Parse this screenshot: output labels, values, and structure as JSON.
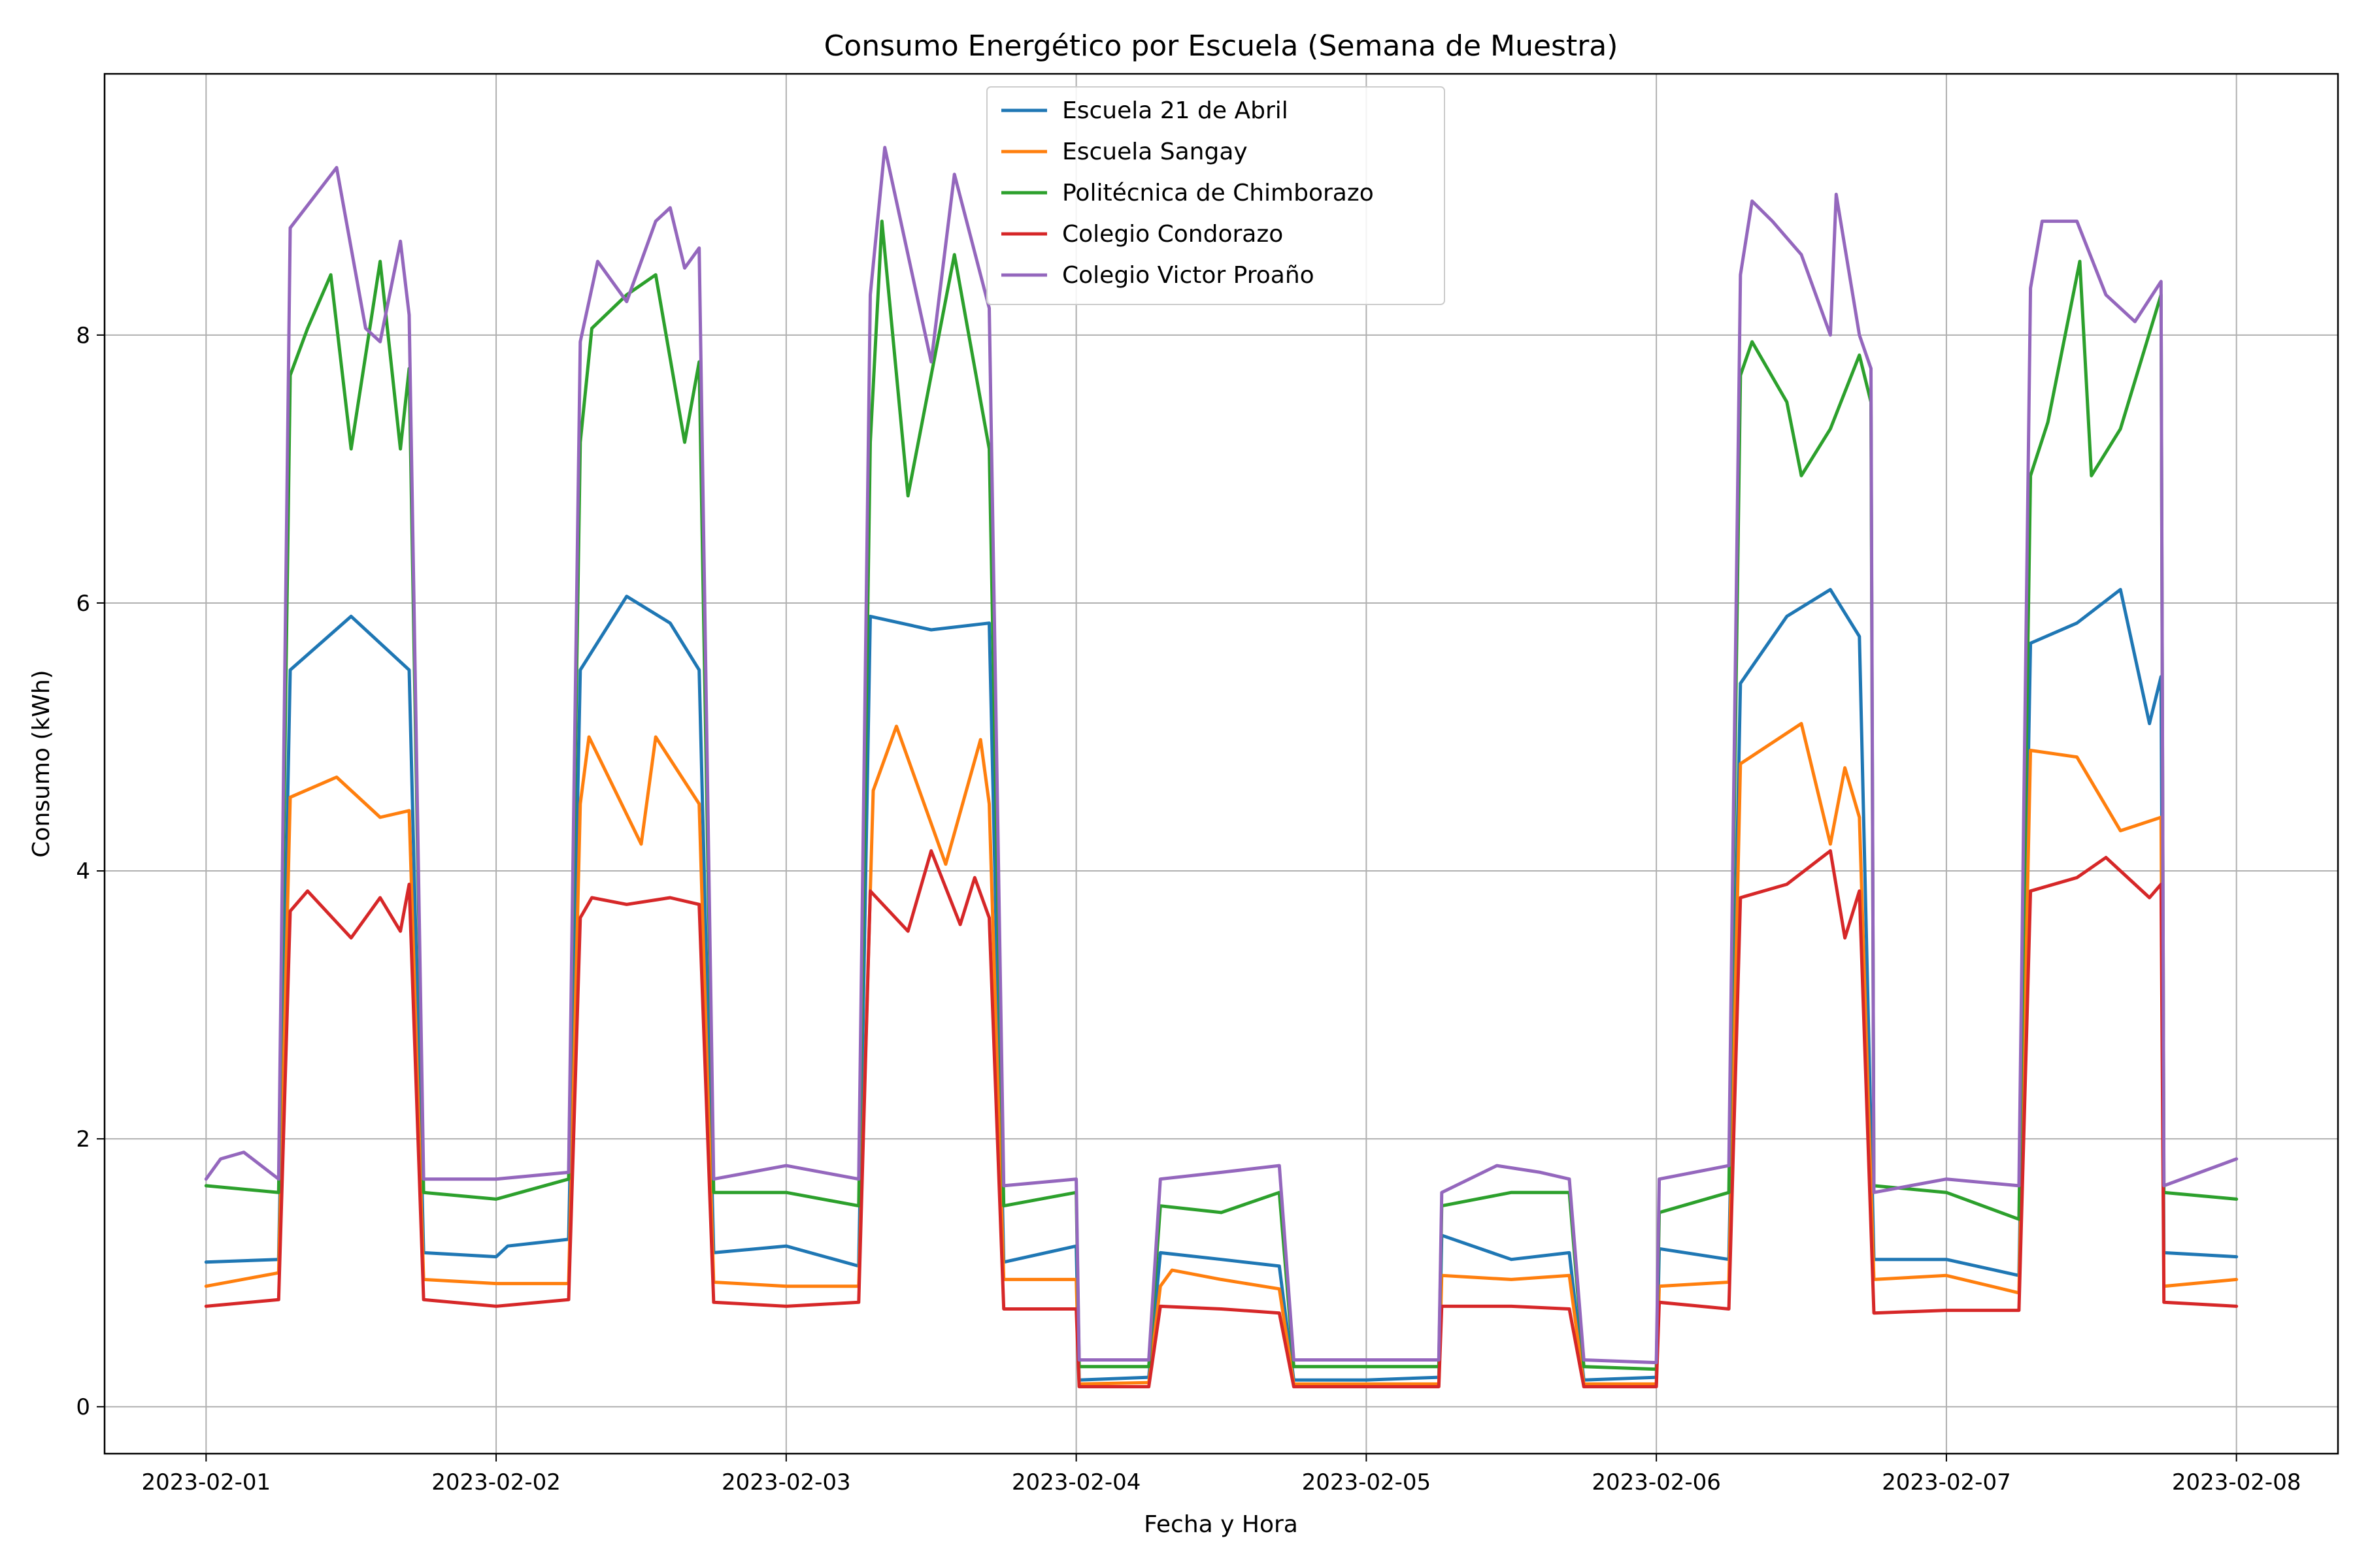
{
  "chart_data": {
    "type": "line",
    "title": "Consumo Energético por Escuela (Semana de Muestra)",
    "xlabel": "Fecha y Hora",
    "ylabel": "Consumo (kWh)",
    "ylim": [
      -0.35,
      9.95
    ],
    "yticks": [
      0,
      2,
      4,
      6,
      8
    ],
    "xticks": [
      "2023-02-01",
      "2023-02-02",
      "2023-02-03",
      "2023-02-04",
      "2023-02-05",
      "2023-02-06",
      "2023-02-07",
      "2023-02-08"
    ],
    "x_range_days": [
      -0.35,
      7.35
    ],
    "grid": true,
    "legend_position": "upper center",
    "series": [
      {
        "name": "Escuela 21 de Abril",
        "color": "#1f77b4",
        "points": [
          [
            0,
            1.08
          ],
          [
            0.25,
            1.1
          ],
          [
            0.29,
            5.5
          ],
          [
            0.5,
            5.9
          ],
          [
            0.7,
            5.5
          ],
          [
            0.75,
            1.15
          ],
          [
            1,
            1.12
          ],
          [
            1.04,
            1.2
          ],
          [
            1.25,
            1.25
          ],
          [
            1.29,
            5.5
          ],
          [
            1.45,
            6.05
          ],
          [
            1.6,
            5.85
          ],
          [
            1.7,
            5.5
          ],
          [
            1.75,
            1.15
          ],
          [
            2,
            1.2
          ],
          [
            2.25,
            1.05
          ],
          [
            2.29,
            5.9
          ],
          [
            2.5,
            5.8
          ],
          [
            2.7,
            5.85
          ],
          [
            2.75,
            1.08
          ],
          [
            3,
            1.2
          ],
          [
            3.01,
            0.2
          ],
          [
            3.25,
            0.22
          ],
          [
            3.29,
            1.15
          ],
          [
            3.5,
            1.1
          ],
          [
            3.7,
            1.05
          ],
          [
            3.75,
            0.2
          ],
          [
            4,
            0.2
          ],
          [
            4.25,
            0.22
          ],
          [
            4.26,
            1.28
          ],
          [
            4.5,
            1.1
          ],
          [
            4.7,
            1.15
          ],
          [
            4.75,
            0.2
          ],
          [
            5,
            0.22
          ],
          [
            5.01,
            1.18
          ],
          [
            5.25,
            1.1
          ],
          [
            5.29,
            5.4
          ],
          [
            5.45,
            5.9
          ],
          [
            5.6,
            6.1
          ],
          [
            5.7,
            5.75
          ],
          [
            5.75,
            1.1
          ],
          [
            6,
            1.1
          ],
          [
            6.25,
            0.98
          ],
          [
            6.29,
            5.7
          ],
          [
            6.45,
            5.85
          ],
          [
            6.6,
            6.1
          ],
          [
            6.7,
            5.1
          ],
          [
            6.74,
            5.45
          ],
          [
            6.75,
            1.15
          ],
          [
            7,
            1.12
          ]
        ]
      },
      {
        "name": "Escuela Sangay",
        "color": "#ff7f0e",
        "points": [
          [
            0,
            0.9
          ],
          [
            0.25,
            1.0
          ],
          [
            0.29,
            4.55
          ],
          [
            0.45,
            4.7
          ],
          [
            0.6,
            4.4
          ],
          [
            0.7,
            4.45
          ],
          [
            0.75,
            0.95
          ],
          [
            1,
            0.92
          ],
          [
            1.25,
            0.92
          ],
          [
            1.29,
            4.5
          ],
          [
            1.32,
            5.0
          ],
          [
            1.5,
            4.2
          ],
          [
            1.55,
            5.0
          ],
          [
            1.7,
            4.5
          ],
          [
            1.75,
            0.93
          ],
          [
            2,
            0.9
          ],
          [
            2.25,
            0.9
          ],
          [
            2.3,
            4.6
          ],
          [
            2.38,
            5.08
          ],
          [
            2.55,
            4.05
          ],
          [
            2.67,
            4.98
          ],
          [
            2.7,
            4.5
          ],
          [
            2.75,
            0.95
          ],
          [
            3,
            0.95
          ],
          [
            3.01,
            0.17
          ],
          [
            3.25,
            0.18
          ],
          [
            3.29,
            0.9
          ],
          [
            3.33,
            1.02
          ],
          [
            3.5,
            0.95
          ],
          [
            3.7,
            0.88
          ],
          [
            3.75,
            0.17
          ],
          [
            4,
            0.17
          ],
          [
            4.25,
            0.17
          ],
          [
            4.26,
            0.98
          ],
          [
            4.5,
            0.95
          ],
          [
            4.7,
            0.98
          ],
          [
            4.75,
            0.17
          ],
          [
            5,
            0.17
          ],
          [
            5.01,
            0.9
          ],
          [
            5.25,
            0.93
          ],
          [
            5.29,
            4.8
          ],
          [
            5.5,
            5.1
          ],
          [
            5.6,
            4.2
          ],
          [
            5.65,
            4.77
          ],
          [
            5.7,
            4.4
          ],
          [
            5.75,
            0.95
          ],
          [
            6,
            0.98
          ],
          [
            6.25,
            0.85
          ],
          [
            6.29,
            4.9
          ],
          [
            6.45,
            4.85
          ],
          [
            6.6,
            4.3
          ],
          [
            6.74,
            4.4
          ],
          [
            6.75,
            0.9
          ],
          [
            7,
            0.95
          ]
        ]
      },
      {
        "name": "Politécnica de Chimborazo",
        "color": "#2ca02c",
        "points": [
          [
            0,
            1.65
          ],
          [
            0.25,
            1.6
          ],
          [
            0.29,
            7.7
          ],
          [
            0.35,
            8.05
          ],
          [
            0.43,
            8.45
          ],
          [
            0.5,
            7.15
          ],
          [
            0.6,
            8.55
          ],
          [
            0.67,
            7.15
          ],
          [
            0.7,
            7.75
          ],
          [
            0.75,
            1.6
          ],
          [
            1,
            1.55
          ],
          [
            1.25,
            1.7
          ],
          [
            1.29,
            7.2
          ],
          [
            1.33,
            8.05
          ],
          [
            1.45,
            8.3
          ],
          [
            1.55,
            8.45
          ],
          [
            1.65,
            7.2
          ],
          [
            1.7,
            7.8
          ],
          [
            1.75,
            1.6
          ],
          [
            2,
            1.6
          ],
          [
            2.25,
            1.5
          ],
          [
            2.29,
            7.2
          ],
          [
            2.33,
            8.85
          ],
          [
            2.42,
            6.8
          ],
          [
            2.58,
            8.6
          ],
          [
            2.7,
            7.15
          ],
          [
            2.75,
            1.5
          ],
          [
            3,
            1.6
          ],
          [
            3.01,
            0.3
          ],
          [
            3.25,
            0.3
          ],
          [
            3.29,
            1.5
          ],
          [
            3.5,
            1.45
          ],
          [
            3.7,
            1.6
          ],
          [
            3.75,
            0.3
          ],
          [
            4,
            0.3
          ],
          [
            4.25,
            0.3
          ],
          [
            4.26,
            1.5
          ],
          [
            4.5,
            1.6
          ],
          [
            4.7,
            1.6
          ],
          [
            4.75,
            0.3
          ],
          [
            5,
            0.28
          ],
          [
            5.01,
            1.45
          ],
          [
            5.25,
            1.6
          ],
          [
            5.29,
            7.7
          ],
          [
            5.33,
            7.95
          ],
          [
            5.45,
            7.5
          ],
          [
            5.5,
            6.95
          ],
          [
            5.6,
            7.3
          ],
          [
            5.7,
            7.85
          ],
          [
            5.74,
            7.5
          ],
          [
            5.75,
            1.65
          ],
          [
            6,
            1.6
          ],
          [
            6.25,
            1.4
          ],
          [
            6.29,
            6.95
          ],
          [
            6.35,
            7.35
          ],
          [
            6.46,
            8.55
          ],
          [
            6.5,
            6.95
          ],
          [
            6.6,
            7.3
          ],
          [
            6.74,
            8.3
          ],
          [
            6.75,
            1.6
          ],
          [
            7,
            1.55
          ]
        ]
      },
      {
        "name": "Colegio Condorazo",
        "color": "#d62728",
        "points": [
          [
            0,
            0.75
          ],
          [
            0.25,
            0.8
          ],
          [
            0.29,
            3.7
          ],
          [
            0.35,
            3.85
          ],
          [
            0.5,
            3.5
          ],
          [
            0.6,
            3.8
          ],
          [
            0.67,
            3.55
          ],
          [
            0.7,
            3.9
          ],
          [
            0.75,
            0.8
          ],
          [
            1,
            0.75
          ],
          [
            1.25,
            0.8
          ],
          [
            1.29,
            3.65
          ],
          [
            1.33,
            3.8
          ],
          [
            1.45,
            3.75
          ],
          [
            1.6,
            3.8
          ],
          [
            1.7,
            3.75
          ],
          [
            1.75,
            0.78
          ],
          [
            2,
            0.75
          ],
          [
            2.25,
            0.78
          ],
          [
            2.29,
            3.85
          ],
          [
            2.42,
            3.55
          ],
          [
            2.5,
            4.15
          ],
          [
            2.6,
            3.6
          ],
          [
            2.65,
            3.95
          ],
          [
            2.7,
            3.65
          ],
          [
            2.75,
            0.73
          ],
          [
            3,
            0.73
          ],
          [
            3.01,
            0.15
          ],
          [
            3.25,
            0.15
          ],
          [
            3.29,
            0.75
          ],
          [
            3.5,
            0.73
          ],
          [
            3.7,
            0.7
          ],
          [
            3.75,
            0.15
          ],
          [
            4,
            0.15
          ],
          [
            4.25,
            0.15
          ],
          [
            4.26,
            0.75
          ],
          [
            4.5,
            0.75
          ],
          [
            4.7,
            0.73
          ],
          [
            4.75,
            0.15
          ],
          [
            5,
            0.15
          ],
          [
            5.01,
            0.78
          ],
          [
            5.25,
            0.73
          ],
          [
            5.29,
            3.8
          ],
          [
            5.45,
            3.9
          ],
          [
            5.6,
            4.15
          ],
          [
            5.65,
            3.5
          ],
          [
            5.7,
            3.85
          ],
          [
            5.75,
            0.7
          ],
          [
            6,
            0.72
          ],
          [
            6.25,
            0.72
          ],
          [
            6.29,
            3.85
          ],
          [
            6.45,
            3.95
          ],
          [
            6.55,
            4.1
          ],
          [
            6.7,
            3.8
          ],
          [
            6.74,
            3.9
          ],
          [
            6.75,
            0.78
          ],
          [
            7,
            0.75
          ]
        ]
      },
      {
        "name": "Colegio Victor Proaño",
        "color": "#9467bd",
        "points": [
          [
            0,
            1.7
          ],
          [
            0.05,
            1.85
          ],
          [
            0.13,
            1.9
          ],
          [
            0.25,
            1.7
          ],
          [
            0.29,
            8.8
          ],
          [
            0.45,
            9.25
          ],
          [
            0.55,
            8.05
          ],
          [
            0.6,
            7.95
          ],
          [
            0.67,
            8.7
          ],
          [
            0.7,
            8.15
          ],
          [
            0.75,
            1.7
          ],
          [
            1,
            1.7
          ],
          [
            1.25,
            1.75
          ],
          [
            1.29,
            7.95
          ],
          [
            1.35,
            8.55
          ],
          [
            1.45,
            8.25
          ],
          [
            1.55,
            8.85
          ],
          [
            1.6,
            8.95
          ],
          [
            1.65,
            8.5
          ],
          [
            1.7,
            8.65
          ],
          [
            1.75,
            1.7
          ],
          [
            2,
            1.8
          ],
          [
            2.25,
            1.7
          ],
          [
            2.29,
            8.3
          ],
          [
            2.34,
            9.4
          ],
          [
            2.5,
            7.8
          ],
          [
            2.58,
            9.2
          ],
          [
            2.7,
            8.2
          ],
          [
            2.75,
            1.65
          ],
          [
            3,
            1.7
          ],
          [
            3.01,
            0.35
          ],
          [
            3.25,
            0.35
          ],
          [
            3.29,
            1.7
          ],
          [
            3.5,
            1.75
          ],
          [
            3.7,
            1.8
          ],
          [
            3.75,
            0.35
          ],
          [
            4,
            0.35
          ],
          [
            4.25,
            0.35
          ],
          [
            4.26,
            1.6
          ],
          [
            4.45,
            1.8
          ],
          [
            4.6,
            1.75
          ],
          [
            4.7,
            1.7
          ],
          [
            4.75,
            0.35
          ],
          [
            5,
            0.33
          ],
          [
            5.01,
            1.7
          ],
          [
            5.25,
            1.8
          ],
          [
            5.29,
            8.45
          ],
          [
            5.33,
            9.0
          ],
          [
            5.4,
            8.85
          ],
          [
            5.5,
            8.6
          ],
          [
            5.6,
            8.0
          ],
          [
            5.62,
            9.05
          ],
          [
            5.7,
            8.0
          ],
          [
            5.74,
            7.75
          ],
          [
            5.75,
            1.6
          ],
          [
            6,
            1.7
          ],
          [
            6.25,
            1.65
          ],
          [
            6.29,
            8.35
          ],
          [
            6.33,
            8.85
          ],
          [
            6.45,
            8.85
          ],
          [
            6.55,
            8.3
          ],
          [
            6.65,
            8.1
          ],
          [
            6.74,
            8.4
          ],
          [
            6.75,
            1.65
          ],
          [
            7,
            1.85
          ]
        ]
      }
    ]
  }
}
